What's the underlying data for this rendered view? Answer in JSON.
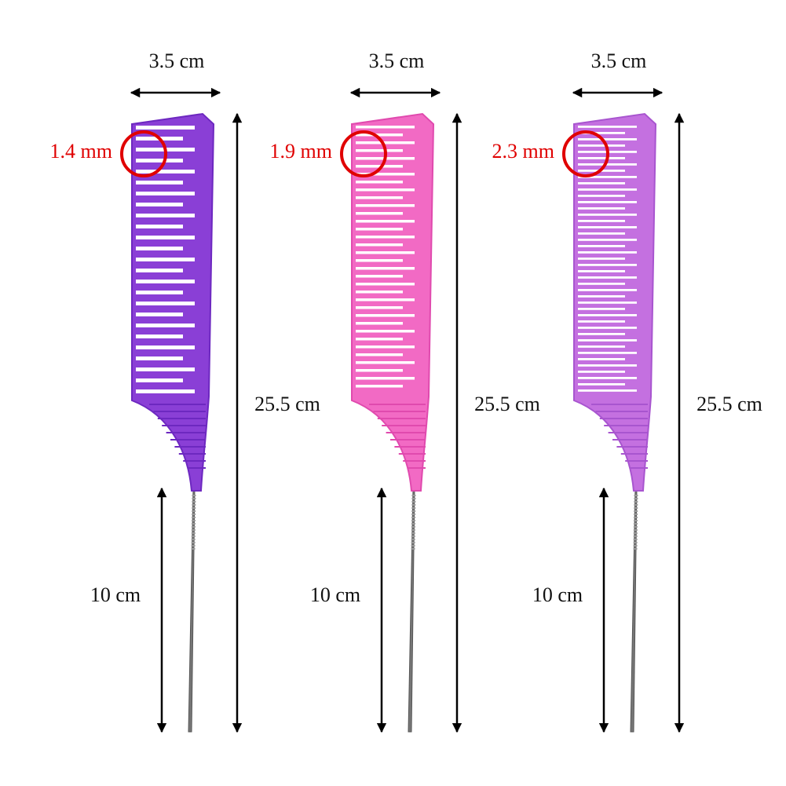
{
  "combs": [
    {
      "width": "3.5 cm",
      "tooth_gap": "1.4 mm",
      "length": "25.5 cm",
      "tail": "10 cm"
    },
    {
      "width": "3.5 cm",
      "tooth_gap": "1.9 mm",
      "length": "25.5 cm",
      "tail": "10 cm"
    },
    {
      "width": "3.5 cm",
      "tooth_gap": "2.3 mm",
      "length": "25.5 cm",
      "tail": "10 cm"
    }
  ]
}
